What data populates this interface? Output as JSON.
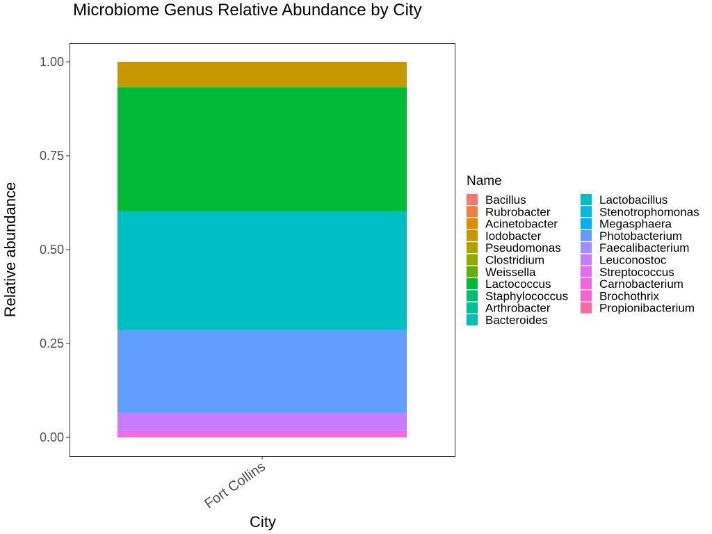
{
  "chart_data": {
    "type": "bar",
    "stacked": true,
    "title": "Microbiome Genus Relative Abundance by City",
    "xlabel": "City",
    "ylabel": "Relative abundance",
    "categories": [
      "Fort Collins"
    ],
    "ylim": [
      0,
      1
    ],
    "yticks": [
      0,
      0.25,
      0.5,
      0.75,
      1
    ],
    "ytick_labels": [
      "0.00",
      "0.25",
      "0.50",
      "0.75",
      "1.00"
    ],
    "legend_title": "Name",
    "legend_position": "right",
    "grid": false,
    "series": [
      {
        "name": "Bacillus",
        "color": "#F8766D",
        "values": [
          0.0
        ]
      },
      {
        "name": "Rubrobacter",
        "color": "#EE8044",
        "values": [
          0.0
        ]
      },
      {
        "name": "Acinetobacter",
        "color": "#DE8C00",
        "values": [
          0.0
        ]
      },
      {
        "name": "Iodobacter",
        "color": "#C99800",
        "values": [
          0.06
        ]
      },
      {
        "name": "Pseudomonas",
        "color": "#AFA100",
        "values": [
          0.003
        ]
      },
      {
        "name": "Clostridium",
        "color": "#8EAB00",
        "values": [
          0.003
        ]
      },
      {
        "name": "Weissella",
        "color": "#5EB300",
        "values": [
          0.002
        ]
      },
      {
        "name": "Lactococcus",
        "color": "#00BA38",
        "values": [
          0.33
        ]
      },
      {
        "name": "Staphylococcus",
        "color": "#00BE70",
        "values": [
          0.0
        ]
      },
      {
        "name": "Arthrobacter",
        "color": "#00C097",
        "values": [
          0.0
        ]
      },
      {
        "name": "Bacteroides",
        "color": "#00C1B2",
        "values": [
          0.0
        ]
      },
      {
        "name": "Lactobacillus",
        "color": "#00BFC4",
        "values": [
          0.316
        ]
      },
      {
        "name": "Stenotrophomonas",
        "color": "#00BAE0",
        "values": [
          0.0
        ]
      },
      {
        "name": "Megasphaera",
        "color": "#00B0F6",
        "values": [
          0.0
        ]
      },
      {
        "name": "Photobacterium",
        "color": "#619CFF",
        "values": [
          0.221
        ]
      },
      {
        "name": "Faecalibacterium",
        "color": "#A58AFF",
        "values": [
          0.002
        ]
      },
      {
        "name": "Leuconostoc",
        "color": "#C77CFF",
        "values": [
          0.046
        ]
      },
      {
        "name": "Streptococcus",
        "color": "#E76BF3",
        "values": [
          0.006
        ]
      },
      {
        "name": "Carnobacterium",
        "color": "#F564E3",
        "values": [
          0.004
        ]
      },
      {
        "name": "Brochothrix",
        "color": "#FD61D1",
        "values": [
          0.004
        ]
      },
      {
        "name": "Propionibacterium",
        "color": "#FF67A4",
        "values": [
          0.003
        ]
      }
    ]
  }
}
